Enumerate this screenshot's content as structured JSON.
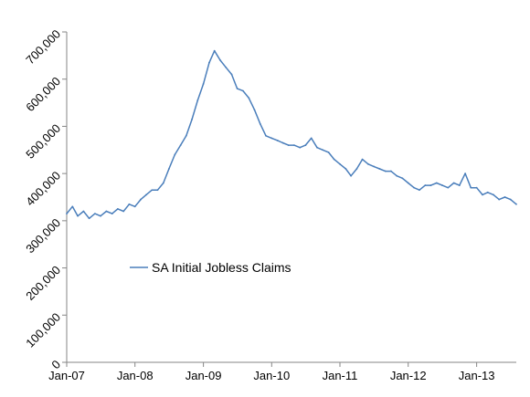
{
  "chart_data": {
    "type": "line",
    "title": "",
    "xlabel": "",
    "ylabel": "",
    "ylim": [
      0,
      700000
    ],
    "y_ticks": [
      {
        "value": 0,
        "label": "0"
      },
      {
        "value": 100000,
        "label": "100,000"
      },
      {
        "value": 200000,
        "label": "200,000"
      },
      {
        "value": 300000,
        "label": "300,000"
      },
      {
        "value": 400000,
        "label": "400,000"
      },
      {
        "value": 500000,
        "label": "500,000"
      },
      {
        "value": 600000,
        "label": "600,000"
      },
      {
        "value": 700000,
        "label": "700,000"
      }
    ],
    "x_ticks": [
      {
        "value": "2007-01",
        "label": "Jan-07"
      },
      {
        "value": "2008-01",
        "label": "Jan-08"
      },
      {
        "value": "2009-01",
        "label": "Jan-09"
      },
      {
        "value": "2010-01",
        "label": "Jan-10"
      },
      {
        "value": "2011-01",
        "label": "Jan-11"
      },
      {
        "value": "2012-01",
        "label": "Jan-12"
      },
      {
        "value": "2013-01",
        "label": "Jan-13"
      }
    ],
    "grid": false,
    "legend": {
      "position": "middle-left"
    },
    "series": [
      {
        "name": "SA Initial Jobless Claims",
        "color": "#4a7ebb",
        "x": [
          "2007-01",
          "2007-02",
          "2007-03",
          "2007-04",
          "2007-05",
          "2007-06",
          "2007-07",
          "2007-08",
          "2007-09",
          "2007-10",
          "2007-11",
          "2007-12",
          "2008-01",
          "2008-02",
          "2008-03",
          "2008-04",
          "2008-05",
          "2008-06",
          "2008-07",
          "2008-08",
          "2008-09",
          "2008-10",
          "2008-11",
          "2008-12",
          "2009-01",
          "2009-02",
          "2009-03",
          "2009-04",
          "2009-05",
          "2009-06",
          "2009-07",
          "2009-08",
          "2009-09",
          "2009-10",
          "2009-11",
          "2009-12",
          "2010-01",
          "2010-02",
          "2010-03",
          "2010-04",
          "2010-05",
          "2010-06",
          "2010-07",
          "2010-08",
          "2010-09",
          "2010-10",
          "2010-11",
          "2010-12",
          "2011-01",
          "2011-02",
          "2011-03",
          "2011-04",
          "2011-05",
          "2011-06",
          "2011-07",
          "2011-08",
          "2011-09",
          "2011-10",
          "2011-11",
          "2011-12",
          "2012-01",
          "2012-02",
          "2012-03",
          "2012-04",
          "2012-05",
          "2012-06",
          "2012-07",
          "2012-08",
          "2012-09",
          "2012-10",
          "2012-11",
          "2012-12",
          "2013-01",
          "2013-02",
          "2013-03",
          "2013-04",
          "2013-05",
          "2013-06",
          "2013-07",
          "2013-08"
        ],
        "values": [
          315000,
          330000,
          310000,
          320000,
          305000,
          315000,
          310000,
          320000,
          315000,
          325000,
          320000,
          335000,
          330000,
          345000,
          355000,
          365000,
          365000,
          380000,
          410000,
          440000,
          460000,
          480000,
          515000,
          555000,
          590000,
          635000,
          660000,
          640000,
          625000,
          610000,
          580000,
          575000,
          560000,
          535000,
          505000,
          480000,
          475000,
          470000,
          465000,
          460000,
          460000,
          455000,
          460000,
          475000,
          455000,
          450000,
          445000,
          430000,
          420000,
          410000,
          395000,
          410000,
          430000,
          420000,
          415000,
          410000,
          405000,
          405000,
          395000,
          390000,
          380000,
          370000,
          365000,
          375000,
          375000,
          380000,
          375000,
          370000,
          380000,
          375000,
          400000,
          370000,
          370000,
          355000,
          360000,
          355000,
          345000,
          350000,
          345000,
          335000
        ]
      }
    ]
  }
}
